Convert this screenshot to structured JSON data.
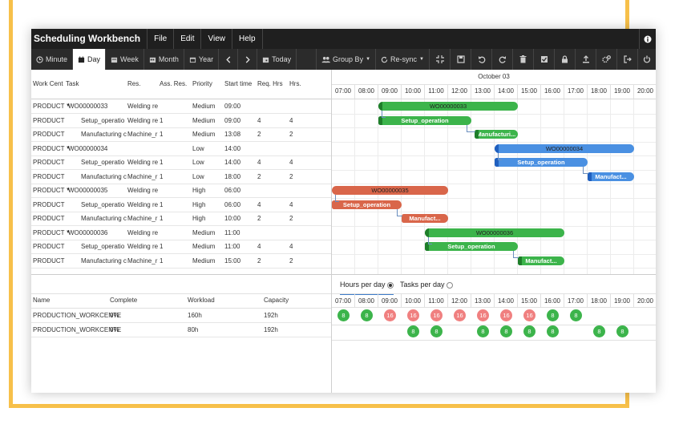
{
  "app_title": "Scheduling Workbench",
  "menu": [
    "File",
    "Edit",
    "View",
    "Help"
  ],
  "toolbar": {
    "minute": "Minute",
    "day": "Day",
    "week": "Week",
    "month": "Month",
    "year": "Year",
    "today": "Today",
    "group_by": "Group By",
    "resync": "Re-sync"
  },
  "grid_headers": {
    "work_center": "Work Cent",
    "task": "Task",
    "res": "Res.",
    "ass_res": "Ass. Res.",
    "priority": "Priority",
    "start_time": "Start time",
    "req_hrs": "Req. Hrs",
    "hrs": "Hrs."
  },
  "rows": [
    {
      "wc": "PRODUCT",
      "task": "WO00000033",
      "parent": true,
      "res": "Welding re",
      "ass": "",
      "priority": "Medium",
      "start": "09:00",
      "req": "",
      "hrs": ""
    },
    {
      "wc": "PRODUCT",
      "task": "Setup_operatio",
      "parent": false,
      "res": "Welding re",
      "ass": "1",
      "priority": "Medium",
      "start": "09:00",
      "req": "4",
      "hrs": "4"
    },
    {
      "wc": "PRODUCT",
      "task": "Manufacturing c",
      "parent": false,
      "res": "Machine_r",
      "ass": "1",
      "priority": "Medium",
      "start": "13:08",
      "req": "2",
      "hrs": "2"
    },
    {
      "wc": "PRODUCT",
      "task": "WO00000034",
      "parent": true,
      "res": "",
      "ass": "",
      "priority": "Low",
      "start": "14:00",
      "req": "",
      "hrs": ""
    },
    {
      "wc": "PRODUCT",
      "task": "Setup_operatio",
      "parent": false,
      "res": "Welding re",
      "ass": "1",
      "priority": "Low",
      "start": "14:00",
      "req": "4",
      "hrs": "4"
    },
    {
      "wc": "PRODUCT",
      "task": "Manufacturing c",
      "parent": false,
      "res": "Machine_r",
      "ass": "1",
      "priority": "Low",
      "start": "18:00",
      "req": "2",
      "hrs": "2"
    },
    {
      "wc": "PRODUCT",
      "task": "WO00000035",
      "parent": true,
      "res": "Welding re",
      "ass": "",
      "priority": "High",
      "start": "06:00",
      "req": "",
      "hrs": ""
    },
    {
      "wc": "PRODUCT",
      "task": "Setup_operatio",
      "parent": false,
      "res": "Welding re",
      "ass": "1",
      "priority": "High",
      "start": "06:00",
      "req": "4",
      "hrs": "4"
    },
    {
      "wc": "PRODUCT",
      "task": "Manufacturing c",
      "parent": false,
      "res": "Machine_r",
      "ass": "1",
      "priority": "High",
      "start": "10:00",
      "req": "2",
      "hrs": "2"
    },
    {
      "wc": "PRODUCT",
      "task": "WO00000036",
      "parent": true,
      "res": "Welding re",
      "ass": "",
      "priority": "Medium",
      "start": "11:00",
      "req": "",
      "hrs": ""
    },
    {
      "wc": "PRODUCT",
      "task": "Setup_operatio",
      "parent": false,
      "res": "Welding re",
      "ass": "1",
      "priority": "Medium",
      "start": "11:00",
      "req": "4",
      "hrs": "4"
    },
    {
      "wc": "PRODUCT",
      "task": "Manufacturing c",
      "parent": false,
      "res": "Machine_r",
      "ass": "1",
      "priority": "Medium",
      "start": "15:00",
      "req": "2",
      "hrs": "2"
    }
  ],
  "gantt": {
    "date": "October 03",
    "hours": [
      "07:00",
      "08:00",
      "09:00",
      "10:00",
      "11:00",
      "12:00",
      "13:00",
      "14:00",
      "15:00",
      "16:00",
      "17:00",
      "18:00",
      "19:00",
      "20:00"
    ],
    "first_hour": 7,
    "bars": [
      {
        "row": 0,
        "label": "WO00000033",
        "start": 9.0,
        "end": 15.0,
        "color": "green",
        "summary": true
      },
      {
        "row": 1,
        "label": "Setup_operation",
        "start": 9.0,
        "end": 13.0,
        "color": "green",
        "summary": false
      },
      {
        "row": 2,
        "label": "Manufacturi...",
        "start": 13.13,
        "end": 15.0,
        "color": "green",
        "summary": false
      },
      {
        "row": 3,
        "label": "WO00000034",
        "start": 14.0,
        "end": 20.0,
        "color": "blue",
        "summary": true
      },
      {
        "row": 4,
        "label": "Setup_operation",
        "start": 14.0,
        "end": 18.0,
        "color": "blue",
        "summary": false
      },
      {
        "row": 5,
        "label": "Manufact...",
        "start": 18.0,
        "end": 20.0,
        "color": "blue",
        "summary": false
      },
      {
        "row": 6,
        "label": "WO00000035",
        "start": 6.0,
        "end": 12.0,
        "color": "orange",
        "summary": true
      },
      {
        "row": 7,
        "label": "Setup_operation",
        "start": 6.0,
        "end": 10.0,
        "color": "orange",
        "summary": false
      },
      {
        "row": 8,
        "label": "Manufact...",
        "start": 10.0,
        "end": 12.0,
        "color": "orange",
        "summary": false
      },
      {
        "row": 9,
        "label": "WO00000036",
        "start": 11.0,
        "end": 17.0,
        "color": "green",
        "summary": true
      },
      {
        "row": 10,
        "label": "Setup_operation",
        "start": 11.0,
        "end": 15.0,
        "color": "green",
        "summary": false
      },
      {
        "row": 11,
        "label": "Manufact...",
        "start": 15.0,
        "end": 17.0,
        "color": "green",
        "summary": false
      }
    ]
  },
  "bottom": {
    "tab_hours": "Hours per day",
    "tab_tasks": "Tasks per day",
    "headers": {
      "name": "Name",
      "complete": "Complete",
      "workload": "Workload",
      "capacity": "Capacity"
    },
    "rows": [
      {
        "name": "PRODUCTION_WORKCENTE",
        "complete": "0%",
        "workload": "160h",
        "capacity": "192h",
        "loads": [
          [
            "8",
            "g"
          ],
          [
            "8",
            "g"
          ],
          [
            "16",
            "r"
          ],
          [
            "16",
            "r"
          ],
          [
            "16",
            "r"
          ],
          [
            "16",
            "r"
          ],
          [
            "16",
            "r"
          ],
          [
            "16",
            "r"
          ],
          [
            "16",
            "r"
          ],
          [
            "8",
            "g"
          ],
          [
            "8",
            "g"
          ],
          null,
          null,
          null
        ]
      },
      {
        "name": "PRODUCTION_WORKCENTE",
        "complete": "0%",
        "workload": "80h",
        "capacity": "192h",
        "loads": [
          null,
          null,
          null,
          [
            "8",
            "g"
          ],
          [
            "8",
            "g"
          ],
          null,
          [
            "8",
            "g"
          ],
          [
            "8",
            "g"
          ],
          [
            "8",
            "g"
          ],
          [
            "8",
            "g"
          ],
          null,
          [
            "8",
            "g"
          ],
          [
            "8",
            "g"
          ],
          null
        ]
      }
    ]
  },
  "colors": {
    "accent": "#f7c04a",
    "green": "#3cb44b",
    "blue": "#4a90e2",
    "orange": "#d9664a",
    "overload": "#f08080"
  }
}
